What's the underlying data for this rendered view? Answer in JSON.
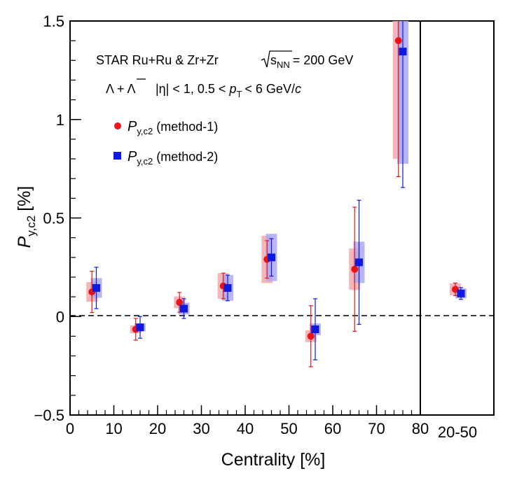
{
  "chart_data": {
    "type": "scatter",
    "xlabel": "Centrality [%]",
    "ylabel_main": "P",
    "ylabel_sub": "y,c2",
    "ylabel_unit": "[%]",
    "ylim": [
      -0.5,
      1.5
    ],
    "xlim": [
      0,
      80
    ],
    "x_ticks": [
      "0",
      "10",
      "20",
      "30",
      "40",
      "50",
      "60",
      "70",
      "80"
    ],
    "y_ticks": [
      "−0.5",
      "0",
      "0.5",
      "1",
      "1.5"
    ],
    "side_panel_label": "20-50",
    "annotations": {
      "line1_experiment": "STAR  Ru+Ru & Zr+Zr",
      "line1_energy_sqrt": "s",
      "line1_energy_sub": "NN",
      "line1_energy_value": "= 200 GeV",
      "line2_particles": "Λ + Λ",
      "line2_cuts_a": "|η| < 1, 0.5 <",
      "line2_cuts_p": "p",
      "line2_cuts_sub": "T",
      "line2_cuts_b": "< 6 GeV/",
      "line2_cuts_c": "c"
    },
    "series": [
      {
        "name": "P_y,c2 (method-1)",
        "legend_main": "P",
        "legend_sub": "y,c2",
        "legend_rest": "(method-1)",
        "color": "#e8141b",
        "syst_color": "#f4a9a9",
        "marker": "circle",
        "x": [
          5,
          15,
          25,
          35,
          45,
          55,
          65,
          75
        ],
        "y": [
          0.125,
          -0.065,
          0.072,
          0.155,
          0.29,
          -0.1,
          0.24,
          1.4
        ],
        "stat_err": [
          0.105,
          0.055,
          0.05,
          0.065,
          0.095,
          0.155,
          0.315,
          0.69
        ],
        "syst_err": [
          0.05,
          0.02,
          0.03,
          0.065,
          0.12,
          0.03,
          0.105,
          0.6
        ]
      },
      {
        "name": "P_y,c2 (method-2)",
        "legend_main": "P",
        "legend_sub": "y,c2",
        "legend_rest": "(method-2)",
        "color": "#1019e0",
        "syst_color": "#a9aaf2",
        "marker": "square",
        "x": [
          6,
          16,
          26,
          36,
          46,
          56,
          66,
          76
        ],
        "y": [
          0.145,
          -0.055,
          0.04,
          0.145,
          0.3,
          -0.065,
          0.275,
          1.345
        ],
        "stat_err": [
          0.105,
          0.055,
          0.05,
          0.065,
          0.095,
          0.155,
          0.315,
          0.69
        ],
        "syst_err": [
          0.05,
          0.02,
          0.03,
          0.065,
          0.12,
          0.03,
          0.105,
          0.57
        ]
      }
    ],
    "side_panel": [
      {
        "series": "P_y,c2 (method-1)",
        "y": 0.138,
        "stat_err": 0.032,
        "syst_err": 0.03
      },
      {
        "series": "P_y,c2 (method-2)",
        "y": 0.117,
        "stat_err": 0.03,
        "syst_err": 0.025
      }
    ],
    "zero_line": "dashed",
    "grid": false,
    "legend_position": "top-left"
  }
}
